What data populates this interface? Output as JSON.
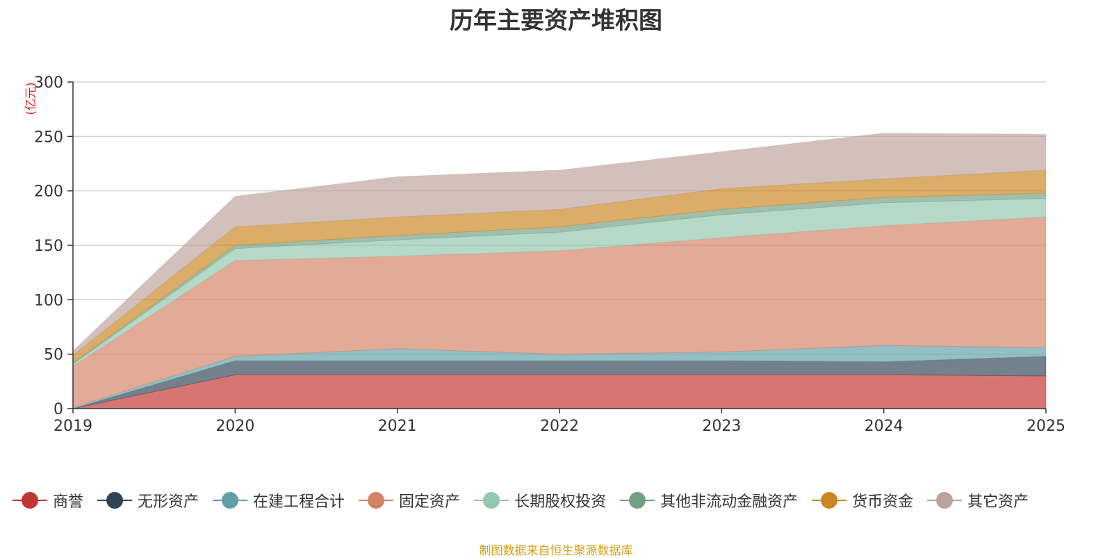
{
  "chart_data": {
    "type": "area",
    "stacked": true,
    "title": "历年主要资产堆积图",
    "ylabel": "(亿元)",
    "xlabel": "",
    "ylim": [
      0,
      300
    ],
    "yticks": [
      0,
      50,
      100,
      150,
      200,
      250,
      300
    ],
    "x": [
      "2019",
      "2020",
      "2021",
      "2022",
      "2023",
      "2024",
      "2025"
    ],
    "grid": true,
    "legend_position": "bottom",
    "series": [
      {
        "name": "商誉",
        "color": "#c23531",
        "values": [
          0,
          31,
          31,
          31,
          31,
          31,
          30
        ]
      },
      {
        "name": "无形资产",
        "color": "#2f4554",
        "values": [
          0,
          13,
          13,
          13,
          13,
          12,
          18
        ]
      },
      {
        "name": "在建工程合计",
        "color": "#61a0a8",
        "values": [
          1,
          4,
          11,
          6,
          8,
          15,
          8
        ]
      },
      {
        "name": "固定资产",
        "color": "#d48265",
        "values": [
          38,
          88,
          85,
          95,
          105,
          110,
          120
        ]
      },
      {
        "name": "长期股权投资",
        "color": "#91c7ae",
        "values": [
          2,
          11,
          15,
          17,
          21,
          21,
          17
        ]
      },
      {
        "name": "其他非流动金融资产",
        "color": "#749f83",
        "values": [
          1,
          3,
          4,
          5,
          5,
          5,
          5
        ]
      },
      {
        "name": "货币资金",
        "color": "#ca8622",
        "values": [
          7,
          17,
          17,
          16,
          19,
          17,
          21
        ]
      },
      {
        "name": "其它资产",
        "color": "#bda29a",
        "values": [
          4,
          28,
          37,
          36,
          34,
          42,
          33
        ]
      }
    ]
  },
  "source": "制图数据来自恒生聚源数据库"
}
